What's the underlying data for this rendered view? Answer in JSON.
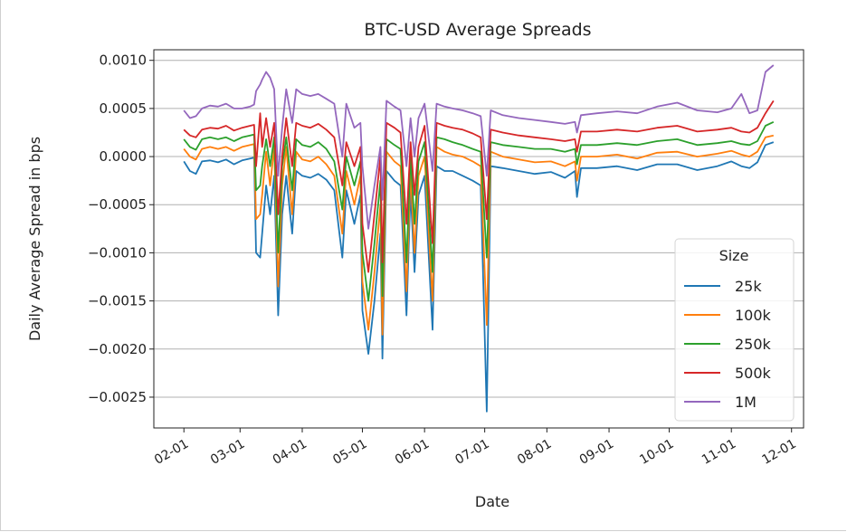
{
  "chart_data": {
    "type": "line",
    "title": "BTC-USD Average Spreads",
    "xlabel": "Date",
    "ylabel": "Daily Average Spread in bps",
    "ylim": [
      -0.00282,
      0.00111
    ],
    "xlim": [
      "01-17",
      "12-07"
    ],
    "y_ticks": [
      0.001,
      0.0005,
      0.0,
      -0.0005,
      -0.001,
      -0.0015,
      -0.002,
      -0.0025
    ],
    "y_tick_labels": [
      "0.0010",
      "0.0005",
      "0.0000",
      "−0.0005",
      "−0.0010",
      "−0.0015",
      "−0.0020",
      "−0.0025"
    ],
    "x_ticks": [
      "02-01",
      "03-01",
      "04-01",
      "05-01",
      "06-01",
      "07-01",
      "08-01",
      "09-01",
      "10-01",
      "11-01",
      "12-01"
    ],
    "grid": "horizontal",
    "legend": {
      "title": "Size",
      "placement": "lower-right"
    },
    "x": [
      "02-01",
      "02-04",
      "02-07",
      "02-10",
      "02-14",
      "02-18",
      "02-22",
      "02-26",
      "03-02",
      "03-06",
      "03-08",
      "03-09",
      "03-11",
      "03-12",
      "03-14",
      "03-16",
      "03-18",
      "03-20",
      "03-22",
      "03-24",
      "03-27",
      "03-29",
      "04-01",
      "04-05",
      "04-09",
      "04-13",
      "04-17",
      "04-21",
      "04-23",
      "04-27",
      "04-30",
      "05-01",
      "05-04",
      "05-07",
      "05-10",
      "05-11",
      "05-13",
      "05-17",
      "05-20",
      "05-23",
      "05-25",
      "05-27",
      "05-29",
      "06-01",
      "06-05",
      "06-07",
      "06-11",
      "06-15",
      "06-20",
      "06-25",
      "06-29",
      "07-02",
      "07-04",
      "07-10",
      "07-18",
      "07-26",
      "08-03",
      "08-10",
      "08-15",
      "08-16",
      "08-18",
      "08-26",
      "09-05",
      "09-15",
      "09-25",
      "10-05",
      "10-15",
      "10-25",
      "11-01",
      "11-06",
      "11-10",
      "11-14",
      "11-18",
      "11-22"
    ],
    "series": [
      {
        "name": "25k",
        "color": "#1f77b4",
        "values": [
          -5e-05,
          -0.00015,
          -0.00018,
          -5e-05,
          -4e-05,
          -6e-05,
          -3e-05,
          -8e-05,
          -4e-05,
          -2e-05,
          -1e-05,
          -0.001,
          -0.00105,
          -0.0008,
          -0.0003,
          -0.0006,
          -0.0002,
          -0.00165,
          -0.0006,
          -0.0002,
          -0.0008,
          -0.00015,
          -0.0002,
          -0.00022,
          -0.00018,
          -0.00024,
          -0.00035,
          -0.00105,
          -0.00035,
          -0.0007,
          -0.0004,
          -0.0016,
          -0.00205,
          -0.0015,
          -0.0008,
          -0.0021,
          -0.00015,
          -0.00025,
          -0.0003,
          -0.00165,
          -0.00035,
          -0.0012,
          -0.0004,
          -0.0002,
          -0.0018,
          -0.0001,
          -0.00015,
          -0.00015,
          -0.0002,
          -0.00025,
          -0.0003,
          -0.00265,
          -0.0001,
          -0.00012,
          -0.00015,
          -0.00018,
          -0.00016,
          -0.00022,
          -0.00015,
          -0.00042,
          -0.00012,
          -0.00012,
          -0.0001,
          -0.00014,
          -8e-05,
          -8e-05,
          -0.00014,
          -0.0001,
          -5e-05,
          -0.0001,
          -0.00012,
          -6e-05,
          0.00012,
          0.00015
        ]
      },
      {
        "name": "100k",
        "color": "#ff7f0e",
        "values": [
          8e-05,
          0.0,
          -3e-05,
          8e-05,
          0.0001,
          8e-05,
          0.0001,
          6e-05,
          0.0001,
          0.00012,
          0.00013,
          -0.00065,
          -0.0006,
          -0.0004,
          5e-05,
          -0.0003,
          0.0001,
          -0.00135,
          -0.0003,
          0.0001,
          -0.0006,
          5e-05,
          -3e-05,
          -5e-05,
          0.0,
          -8e-05,
          -0.0002,
          -0.0008,
          -0.00015,
          -0.0005,
          -0.0002,
          -0.0013,
          -0.0018,
          -0.0012,
          -0.0005,
          -0.00185,
          5e-05,
          -5e-05,
          -0.0001,
          -0.0014,
          -0.00015,
          -0.001,
          -0.0002,
          0.0,
          -0.0015,
          0.0001,
          5e-05,
          2e-05,
          0.0,
          -5e-05,
          -0.0001,
          -0.00175,
          5e-05,
          0.0,
          -3e-05,
          -6e-05,
          -5e-05,
          -0.0001,
          -5e-05,
          -0.00025,
          0.0,
          0.0,
          2e-05,
          -2e-05,
          4e-05,
          5e-05,
          0.0,
          3e-05,
          6e-05,
          2e-05,
          0.0,
          5e-05,
          0.0002,
          0.00022
        ]
      },
      {
        "name": "250k",
        "color": "#2ca02c",
        "values": [
          0.00018,
          0.0001,
          7e-05,
          0.00018,
          0.0002,
          0.00018,
          0.0002,
          0.00016,
          0.0002,
          0.00022,
          0.00023,
          -0.00035,
          -0.0003,
          -0.0001,
          0.00018,
          -0.0001,
          0.0002,
          -0.001,
          -0.0001,
          0.0002,
          -0.00035,
          0.00018,
          0.00012,
          0.0001,
          0.00015,
          8e-05,
          -5e-05,
          -0.00055,
          0.0,
          -0.0003,
          -5e-05,
          -0.001,
          -0.0015,
          -0.0009,
          -0.00025,
          -0.00145,
          0.00018,
          0.00012,
          8e-05,
          -0.0011,
          0.0,
          -0.0007,
          -5e-05,
          0.00015,
          -0.0012,
          0.0002,
          0.00018,
          0.00015,
          0.00012,
          8e-05,
          5e-05,
          -0.00105,
          0.00015,
          0.00012,
          0.0001,
          8e-05,
          8e-05,
          5e-05,
          8e-05,
          -8e-05,
          0.00012,
          0.00012,
          0.00014,
          0.00012,
          0.00016,
          0.00018,
          0.00012,
          0.00014,
          0.00016,
          0.00013,
          0.00012,
          0.00016,
          0.00032,
          0.00036
        ]
      },
      {
        "name": "500k",
        "color": "#d62728",
        "values": [
          0.00028,
          0.00022,
          0.0002,
          0.00028,
          0.0003,
          0.00029,
          0.00032,
          0.00027,
          0.0003,
          0.00032,
          0.00033,
          -0.0001,
          0.00045,
          0.0001,
          0.0004,
          0.0001,
          0.00035,
          -0.0006,
          0.0,
          0.0004,
          -0.0001,
          0.00035,
          0.00032,
          0.0003,
          0.00034,
          0.00028,
          0.0002,
          -0.0003,
          0.00015,
          -0.0001,
          0.0001,
          -0.0007,
          -0.0012,
          -0.0006,
          0.0,
          -0.0011,
          0.00035,
          0.0003,
          0.00025,
          -0.0007,
          0.00015,
          -0.0004,
          0.0001,
          0.00032,
          -0.0009,
          0.00035,
          0.00032,
          0.0003,
          0.00028,
          0.00024,
          0.0002,
          -0.00065,
          0.00028,
          0.00025,
          0.00022,
          0.0002,
          0.00018,
          0.00016,
          0.00018,
          5e-05,
          0.00026,
          0.00026,
          0.00028,
          0.00026,
          0.0003,
          0.00032,
          0.00026,
          0.00028,
          0.0003,
          0.00026,
          0.00025,
          0.0003,
          0.00045,
          0.00058
        ]
      },
      {
        "name": "1M",
        "color": "#9467bd",
        "values": [
          0.00048,
          0.0004,
          0.00042,
          0.0005,
          0.00053,
          0.00052,
          0.00055,
          0.0005,
          0.0005,
          0.00052,
          0.00054,
          0.00068,
          0.00075,
          0.0008,
          0.00088,
          0.00082,
          0.0007,
          -0.0002,
          0.0003,
          0.0007,
          0.00035,
          0.0007,
          0.00065,
          0.00063,
          0.00065,
          0.0006,
          0.00055,
          0.0,
          0.00055,
          0.0003,
          0.00035,
          -0.0001,
          -0.00075,
          -0.0003,
          0.0001,
          -0.00045,
          0.00058,
          0.00052,
          0.00048,
          -0.0001,
          0.0004,
          0.0,
          0.0004,
          0.00055,
          -0.00015,
          0.00055,
          0.00052,
          0.0005,
          0.00048,
          0.00045,
          0.00042,
          -0.0002,
          0.00048,
          0.00043,
          0.0004,
          0.00038,
          0.00036,
          0.00034,
          0.00036,
          0.00025,
          0.00043,
          0.00045,
          0.00047,
          0.00045,
          0.00052,
          0.00056,
          0.00048,
          0.00046,
          0.0005,
          0.00065,
          0.00045,
          0.00048,
          0.00088,
          0.00095
        ]
      }
    ]
  }
}
